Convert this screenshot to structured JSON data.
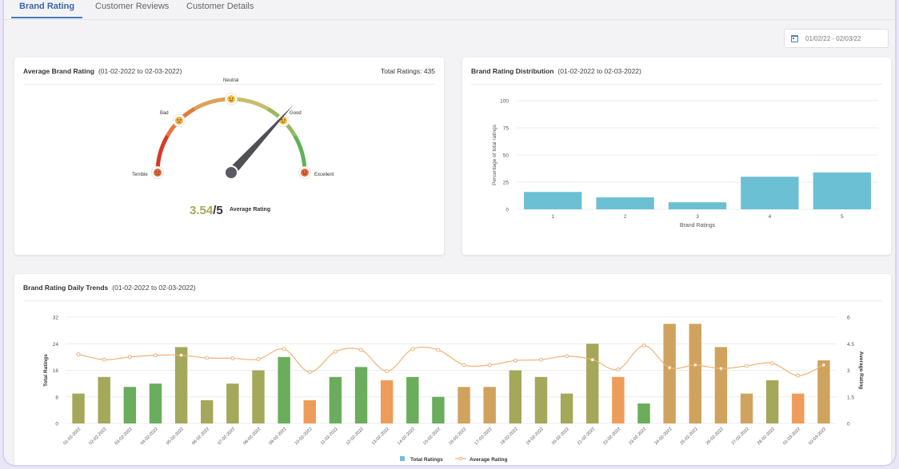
{
  "tabs": [
    {
      "label": "Brand Rating",
      "active": true
    },
    {
      "label": "Customer Reviews",
      "active": false
    },
    {
      "label": "Customer Details",
      "active": false
    }
  ],
  "date_range": "01/02/22 - 02/03/22",
  "gauge_card": {
    "title": "Average Brand Rating",
    "range": "(01-02-2022 to 02-03-2022)",
    "total_ratings": "Total Ratings: 435",
    "value_num": "3.54",
    "value_den": "/5",
    "caption": "Average Rating",
    "labels": [
      "Terrible",
      "Bad",
      "Neutral",
      "Good",
      "Excellent"
    ],
    "rating": 3.54,
    "max": 5
  },
  "dist_card": {
    "title": "Brand Rating Distribution",
    "range": "(01-02-2022 to 02-03-2022)"
  },
  "trend_card": {
    "title": "Brand Rating Daily Trends",
    "range": "(01-02-2022 to 02-03-2022)"
  },
  "colors": {
    "accent": "#4a78bc",
    "bar_blue": "#6cc0d4",
    "line_orange": "#f0b27a",
    "bar_green": "#6aad5d",
    "bar_olive": "#a4a85a",
    "bar_orange": "#ee9c5a",
    "bar_gold": "#cfa35e"
  },
  "chart_data": [
    {
      "type": "bar",
      "xlabel": "Brand Ratings",
      "ylabel": "Percentage of total ratings",
      "categories": [
        "1",
        "2",
        "3",
        "4",
        "5"
      ],
      "values": [
        16,
        11,
        6.5,
        30,
        34
      ],
      "yticks": [
        0,
        25,
        50,
        75,
        100
      ],
      "ylim": [
        0,
        100
      ],
      "grid": true
    },
    {
      "type": "bar",
      "ylabel": "Total Ratings",
      "y2label": "Average Rating",
      "categories": [
        "01-02-2022",
        "02-02-2022",
        "03-02-2022",
        "04-02-2022",
        "05-02-2022",
        "06-02-2022",
        "07-02-2022",
        "08-02-2022",
        "09-02-2022",
        "10-02-2022",
        "11-02-2022",
        "12-02-2022",
        "13-02-2022",
        "14-02-2022",
        "15-02-2022",
        "16-02-2022",
        "17-02-2022",
        "18-02-2022",
        "19-02-2022",
        "20-02-2022",
        "21-02-2022",
        "22-02-2022",
        "23-02-2022",
        "24-02-2022",
        "25-02-2022",
        "26-02-2022",
        "27-02-2022",
        "28-02-2022",
        "01-03-2022",
        "02-03-2022"
      ],
      "series": [
        {
          "name": "Total Ratings",
          "type": "bar",
          "axis": "left",
          "values": [
            9,
            14,
            11,
            12,
            23,
            7,
            12,
            16,
            20,
            7,
            14,
            17,
            13,
            14,
            8,
            11,
            11,
            16,
            14,
            9,
            24,
            14,
            6,
            30,
            30,
            23,
            9,
            13,
            9,
            19
          ]
        },
        {
          "name": "Average Rating",
          "type": "line",
          "axis": "right",
          "values": [
            3.9,
            3.6,
            3.75,
            3.85,
            3.85,
            3.7,
            3.68,
            3.63,
            4.2,
            2.9,
            4.05,
            4.15,
            2.95,
            4.2,
            4.15,
            3.3,
            3.3,
            3.55,
            3.6,
            3.8,
            3.6,
            3.05,
            4.4,
            3.15,
            3.3,
            3.1,
            3.25,
            3.4,
            2.7,
            3.3
          ]
        }
      ],
      "bar_colors": [
        "olive",
        "olive",
        "green",
        "green",
        "olive",
        "olive",
        "olive",
        "olive",
        "green",
        "orange",
        "green",
        "green",
        "orange",
        "green",
        "green",
        "gold",
        "gold",
        "olive",
        "olive",
        "olive",
        "olive",
        "orange",
        "green",
        "gold",
        "gold",
        "gold",
        "gold",
        "olive",
        "orange",
        "gold"
      ],
      "ylim": [
        0,
        32
      ],
      "yticks": [
        0,
        8,
        16,
        24,
        32
      ],
      "y2lim": [
        0,
        6
      ],
      "y2ticks": [
        "0",
        "1.5",
        "3",
        "4.5",
        "6"
      ],
      "legend": "bottom",
      "grid": true
    }
  ]
}
